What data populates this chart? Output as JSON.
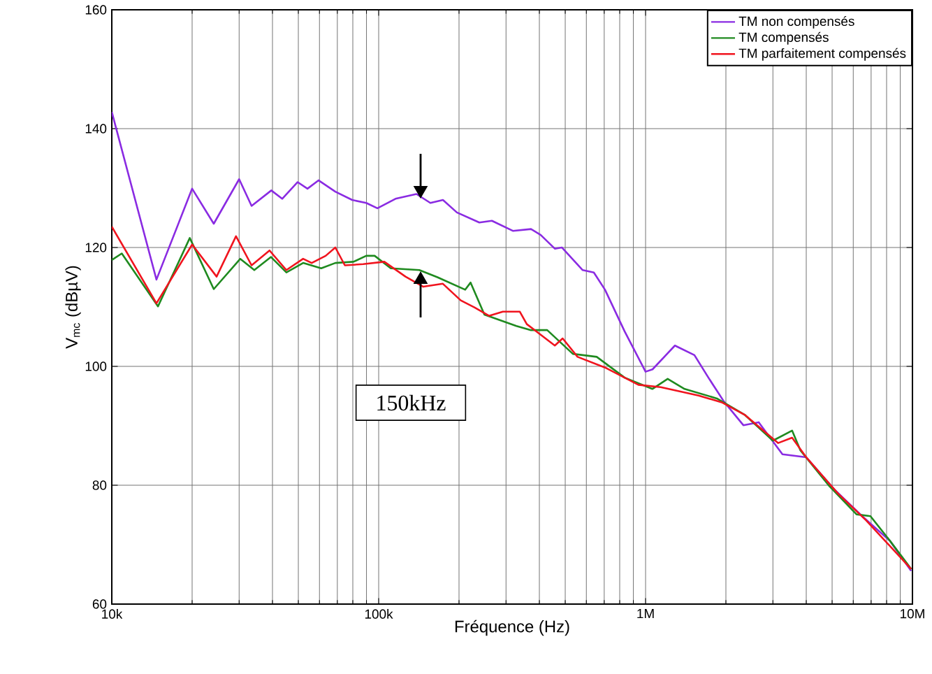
{
  "chart_data": {
    "type": "line",
    "xlabel": "Fréquence (Hz)",
    "ylabel": "V$_{mc}$ (dBµV)",
    "log": "x",
    "grid": true,
    "legend": "top right",
    "line_style": "solid",
    "xlim": [
      10000,
      10000000
    ],
    "ylim": [
      60,
      160
    ],
    "xticks": [
      {
        "value": 10000,
        "label": "10k"
      },
      {
        "value": 100000,
        "label": "100k"
      },
      {
        "value": 1000000,
        "label": "1M"
      },
      {
        "value": 10000000,
        "label": "10M"
      }
    ],
    "yticks": [
      60,
      80,
      100,
      120,
      140,
      160
    ],
    "annotations": [
      "150kHz"
    ],
    "series": [
      {
        "name": "TM non compensés",
        "color": "#8a2be2",
        "x": [
          10000,
          14700,
          20000,
          24100,
          30000,
          33400,
          39600,
          43500,
          49700,
          54100,
          59500,
          68800,
          79600,
          89800,
          98900,
          115600,
          138500,
          156200,
          174100,
          196400,
          238300,
          265600,
          318200,
          372200,
          404800,
          457000,
          485600,
          581200,
          640000,
          704700,
          834600,
          1000000,
          1062000,
          1288000,
          1524000,
          1720000,
          1965000,
          2325000,
          2654000,
          3258000,
          4000000,
          5093000,
          6480000,
          8248000,
          9885000
        ],
        "values": [
          142.8,
          114.6,
          129.9,
          124,
          131.5,
          127,
          129.6,
          128.2,
          131,
          129.9,
          131.3,
          129.4,
          128,
          127.5,
          126.6,
          128.2,
          129,
          127.5,
          128,
          125.9,
          124.2,
          124.5,
          122.8,
          123.1,
          122.1,
          119.8,
          120,
          116.2,
          115.8,
          112.9,
          105.9,
          99.1,
          99.5,
          103.5,
          101.9,
          98.1,
          94.1,
          90.1,
          90.6,
          85.2,
          84.7,
          79.3,
          74.8,
          70.6,
          65.6
        ]
      },
      {
        "name": "TM compensés",
        "color": "#1f8a1f",
        "x": [
          10000,
          10900,
          14900,
          19600,
          24100,
          30300,
          34200,
          39500,
          45100,
          52100,
          60900,
          68800,
          80500,
          89800,
          96600,
          111000,
          142000,
          166000,
          211000,
          221000,
          249000,
          328000,
          372000,
          428000,
          534000,
          656000,
          835000,
          1060000,
          1210000,
          1400000,
          1850000,
          2360000,
          3000000,
          3540000,
          3800000,
          4850000,
          6170000,
          6960000,
          8250000,
          9890000
        ],
        "values": [
          117.9,
          119,
          110.1,
          121.6,
          113,
          118.1,
          116.2,
          118.4,
          115.8,
          117.4,
          116.5,
          117.4,
          117.6,
          118.6,
          118.6,
          116.5,
          116.2,
          115,
          112.9,
          114.1,
          108.7,
          106.8,
          106.1,
          106.1,
          102.1,
          101.6,
          98.1,
          96.2,
          97.9,
          96.2,
          94.6,
          91.8,
          87.5,
          89.2,
          85.9,
          80,
          75.1,
          74.8,
          70.6,
          65.9
        ]
      },
      {
        "name": "TM parfaitement compensés",
        "color": "#f0141e",
        "x": [
          10000,
          14700,
          20000,
          24700,
          29200,
          33400,
          39000,
          45100,
          52100,
          56100,
          63300,
          68800,
          74700,
          87500,
          105000,
          126000,
          147000,
          174000,
          203000,
          229000,
          259000,
          292000,
          338000,
          359000,
          457000,
          489000,
          556000,
          705000,
          940000,
          1140000,
          1580000,
          1940000,
          2360000,
          3140000,
          3540000,
          4000000,
          5260000,
          6700000,
          9890000
        ],
        "values": [
          123.5,
          110.6,
          120.5,
          115.1,
          121.9,
          117,
          119.5,
          116.2,
          118.1,
          117.4,
          118.6,
          120,
          117,
          117.2,
          117.6,
          115.1,
          113.4,
          113.9,
          111.1,
          109.9,
          108.5,
          109.2,
          109.2,
          107.1,
          103.5,
          104.7,
          101.6,
          99.8,
          96.9,
          96.5,
          95.1,
          93.9,
          91.8,
          87.1,
          88,
          84.7,
          78.6,
          74.1,
          65.9
        ]
      }
    ]
  }
}
